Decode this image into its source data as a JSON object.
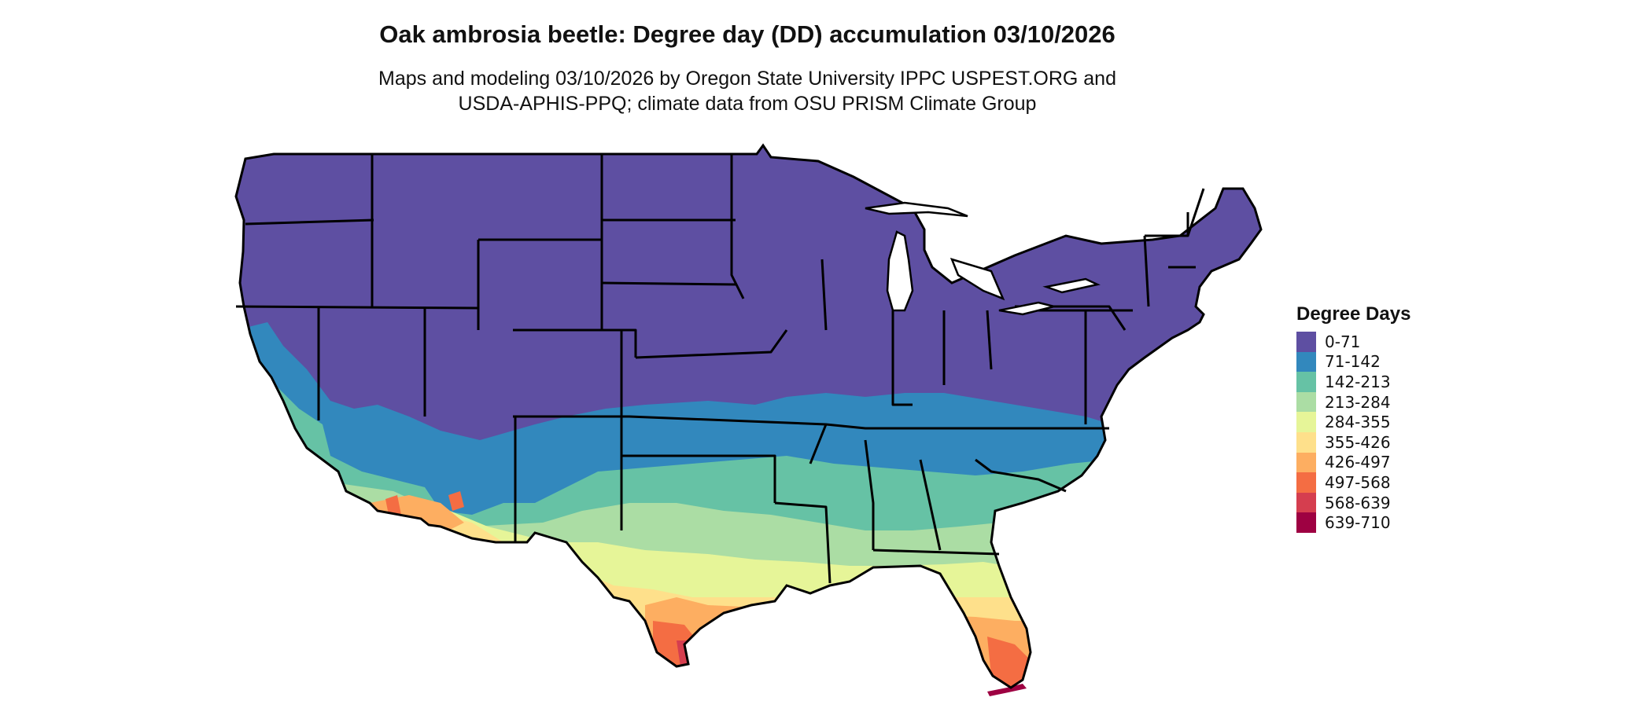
{
  "title": "Oak ambrosia beetle: Degree day (DD) accumulation 03/10/2026",
  "subtitle_line1": "Maps and modeling 03/10/2026 by Oregon State University IPPC USPEST.ORG and",
  "subtitle_line2": "USDA-APHIS-PPQ; climate data from OSU PRISM Climate Group",
  "legend": {
    "title": "Degree Days",
    "items": [
      {
        "label": "0-71",
        "color": "#5e4fa2"
      },
      {
        "label": "71-142",
        "color": "#3288bd"
      },
      {
        "label": "142-213",
        "color": "#66c2a5"
      },
      {
        "label": "213-284",
        "color": "#abdda4"
      },
      {
        "label": "284-355",
        "color": "#e6f598"
      },
      {
        "label": "355-426",
        "color": "#fee08b"
      },
      {
        "label": "426-497",
        "color": "#fdae61"
      },
      {
        "label": "497-568",
        "color": "#f46d43"
      },
      {
        "label": "568-639",
        "color": "#d53e4f"
      },
      {
        "label": "639-710",
        "color": "#9e0142"
      }
    ]
  }
}
